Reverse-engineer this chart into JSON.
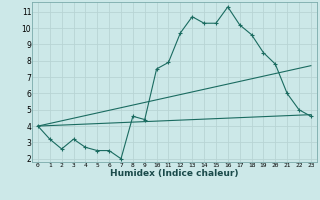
{
  "xlabel": "Humidex (Indice chaleur)",
  "background_color": "#cce8e8",
  "grid_color": "#b8d4d4",
  "line_color": "#1a6b60",
  "xlim": [
    -0.5,
    23.5
  ],
  "ylim": [
    1.8,
    11.6
  ],
  "xticks": [
    0,
    1,
    2,
    3,
    4,
    5,
    6,
    7,
    8,
    9,
    10,
    11,
    12,
    13,
    14,
    15,
    16,
    17,
    18,
    19,
    20,
    21,
    22,
    23
  ],
  "yticks": [
    2,
    3,
    4,
    5,
    6,
    7,
    8,
    9,
    10,
    11
  ],
  "line1_x": [
    0,
    1,
    2,
    3,
    4,
    5,
    6,
    7,
    8,
    9,
    10,
    11,
    12,
    13,
    14,
    15,
    16,
    17,
    18,
    19,
    20,
    21,
    22,
    23
  ],
  "line1_y": [
    4.0,
    3.2,
    2.6,
    3.2,
    2.7,
    2.5,
    2.5,
    2.0,
    4.6,
    4.4,
    7.5,
    7.9,
    9.7,
    10.7,
    10.3,
    10.3,
    11.3,
    10.2,
    9.6,
    8.5,
    7.8,
    6.0,
    5.0,
    4.6
  ],
  "line2_x": [
    0,
    23
  ],
  "line2_y": [
    4.0,
    4.7
  ],
  "line3_x": [
    0,
    23
  ],
  "line3_y": [
    4.0,
    7.7
  ],
  "figsize": [
    3.2,
    2.0
  ],
  "dpi": 100
}
